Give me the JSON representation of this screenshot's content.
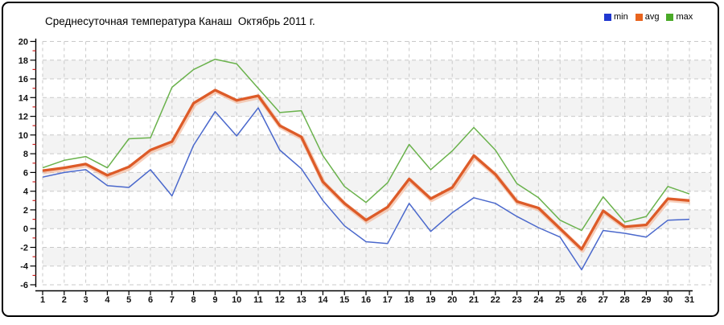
{
  "title": "Среднесуточная температура Канаш  Октябрь 2011 г.",
  "legend": [
    {
      "label": "min",
      "color": "#2038d0"
    },
    {
      "label": "avg",
      "color": "#e8641e"
    },
    {
      "label": "max",
      "color": "#4aaa28"
    }
  ],
  "colors": {
    "min_line": "#4a68cc",
    "avg_line": "#dd5b28",
    "avg_halo": "#f2b596",
    "max_line": "#6ab24c",
    "plot_band": "#f3f3f3",
    "grid": "#c9c9c9",
    "axis": "#000000",
    "tick_major": "#000000",
    "tick_minor": "#cc2222",
    "tick_label": "#111111"
  },
  "chart_data": {
    "type": "line",
    "title": "Среднесуточная температура Канаш  Октябрь 2011 г.",
    "xlabel": "",
    "ylabel": "",
    "x": [
      1,
      2,
      3,
      4,
      5,
      6,
      7,
      8,
      9,
      10,
      11,
      12,
      13,
      14,
      15,
      16,
      17,
      18,
      19,
      20,
      21,
      22,
      23,
      24,
      25,
      26,
      27,
      28,
      29,
      30,
      31
    ],
    "ylim": [
      -6,
      20
    ],
    "yticks": [
      20,
      18,
      16,
      14,
      12,
      10,
      8,
      6,
      4,
      2,
      0,
      -2,
      -4,
      -6
    ],
    "grid": true,
    "legend_position": "top-right",
    "series": [
      {
        "name": "min",
        "values": [
          5.5,
          6.0,
          6.3,
          4.6,
          4.4,
          6.3,
          3.5,
          8.9,
          12.5,
          9.9,
          12.9,
          8.4,
          6.4,
          3.0,
          0.3,
          -1.4,
          -1.6,
          2.7,
          -0.3,
          1.7,
          3.3,
          2.7,
          1.3,
          0.1,
          -0.9,
          -4.4,
          -0.2,
          -0.5,
          -0.9,
          0.9,
          1.0
        ]
      },
      {
        "name": "avg",
        "values": [
          6.2,
          6.5,
          6.9,
          5.7,
          6.6,
          8.4,
          9.3,
          13.4,
          14.8,
          13.7,
          14.2,
          11.0,
          9.8,
          5.0,
          2.7,
          0.9,
          2.3,
          5.3,
          3.2,
          4.4,
          7.8,
          5.8,
          2.9,
          2.2,
          0.0,
          -2.2,
          1.9,
          0.2,
          0.4,
          3.2,
          3.0
        ]
      },
      {
        "name": "max",
        "values": [
          6.5,
          7.3,
          7.7,
          6.5,
          9.6,
          9.7,
          15.1,
          17.0,
          18.1,
          17.6,
          15.0,
          12.4,
          12.6,
          7.8,
          4.5,
          2.8,
          4.9,
          9.0,
          6.3,
          8.3,
          10.8,
          8.4,
          4.8,
          3.3,
          0.9,
          -0.2,
          3.4,
          0.7,
          1.3,
          4.5,
          3.7
        ]
      }
    ]
  }
}
